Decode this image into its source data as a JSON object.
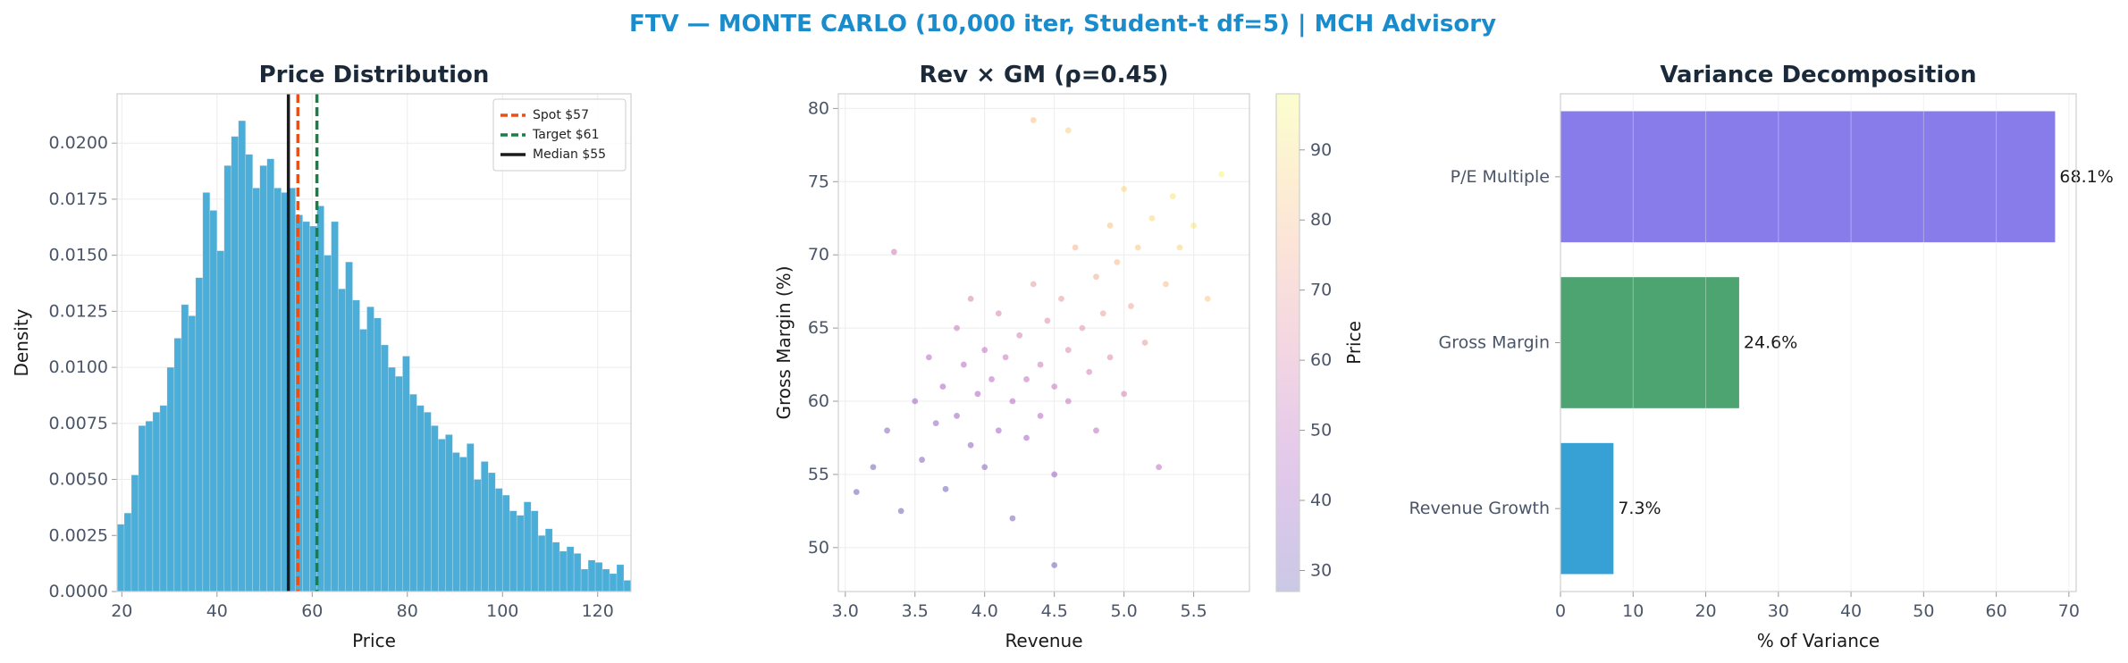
{
  "title": "FTV — MONTE CARLO (10,000 iter, Student-t df=5) | MCH Advisory",
  "chart_data": [
    {
      "type": "histogram",
      "title": "Price Distribution",
      "xlabel": "Price",
      "ylabel": "Density",
      "color": "#4aaed9",
      "grid": true,
      "legend": "upper right",
      "bins": [
        19,
        20.5,
        22,
        23.5,
        25,
        26.5,
        28,
        29.5,
        31,
        32.5,
        34,
        35.5,
        37,
        38.5,
        40,
        41.5,
        43,
        44.5,
        46,
        47.5,
        49,
        50.5,
        52,
        53.5,
        55,
        56.5,
        58,
        59.5,
        61,
        62.5,
        64,
        65.5,
        67,
        68.5,
        70,
        71.5,
        73,
        74.5,
        76,
        77.5,
        79,
        80.5,
        82,
        83.5,
        85,
        86.5,
        88,
        89.5,
        91,
        92.5,
        94,
        95.5,
        97,
        98.5,
        100,
        101.5,
        103,
        104.5,
        106,
        107.5,
        109,
        110.5,
        112,
        113.5,
        115,
        116.5,
        118,
        119.5,
        121,
        122.5,
        124,
        125.5,
        127
      ],
      "values": [
        0.003,
        0.0035,
        0.0052,
        0.0074,
        0.0076,
        0.008,
        0.0083,
        0.01,
        0.0113,
        0.0128,
        0.0123,
        0.014,
        0.0178,
        0.017,
        0.0152,
        0.019,
        0.0203,
        0.021,
        0.0195,
        0.018,
        0.019,
        0.0193,
        0.018,
        0.0178,
        0.018,
        0.0168,
        0.0165,
        0.0163,
        0.0172,
        0.015,
        0.0165,
        0.0135,
        0.0147,
        0.013,
        0.0117,
        0.0127,
        0.0122,
        0.011,
        0.01,
        0.0096,
        0.0105,
        0.0088,
        0.0083,
        0.008,
        0.0074,
        0.0068,
        0.007,
        0.0062,
        0.006,
        0.0066,
        0.005,
        0.0058,
        0.0053,
        0.0046,
        0.0043,
        0.0036,
        0.0034,
        0.004,
        0.0036,
        0.0025,
        0.0028,
        0.0022,
        0.0018,
        0.002,
        0.0017,
        0.001,
        0.0014,
        0.0013,
        0.001,
        0.0008,
        0.0012,
        0.0005
      ],
      "vlines": [
        {
          "name": "Spot $57",
          "x": 57,
          "color": "#e8501a",
          "dashed": true
        },
        {
          "name": "Target $61",
          "x": 61,
          "color": "#1a7f45",
          "dashed": true
        },
        {
          "name": "Median $55",
          "x": 55,
          "color": "#1b1b1b",
          "dashed": false
        }
      ],
      "xlim": [
        19,
        127
      ],
      "xticks": [
        20,
        40,
        60,
        80,
        100,
        120
      ],
      "ylim": [
        0,
        0.0222
      ],
      "yticks": [
        {
          "value": 0,
          "label": "0.0000"
        },
        {
          "value": 0.0025,
          "label": "0.0025"
        },
        {
          "value": 0.005,
          "label": "0.0050"
        },
        {
          "value": 0.0075,
          "label": "0.0075"
        },
        {
          "value": 0.01,
          "label": "0.0100"
        },
        {
          "value": 0.0125,
          "label": "0.0125"
        },
        {
          "value": 0.015,
          "label": "0.0150"
        },
        {
          "value": 0.0175,
          "label": "0.0175"
        },
        {
          "value": 0.02,
          "label": "0.0200"
        }
      ]
    },
    {
      "type": "scatter",
      "title": "Rev × GM (ρ=0.45)",
      "xlabel": "Revenue",
      "ylabel": "Gross Margin (%)",
      "grid": true,
      "colormap": "plasma",
      "colorbar_label": "Price",
      "x": [
        3.08,
        3.2,
        3.3,
        3.35,
        3.4,
        3.5,
        3.55,
        3.6,
        3.65,
        3.7,
        3.72,
        3.8,
        3.8,
        3.85,
        3.9,
        3.9,
        3.95,
        4.0,
        4.0,
        4.05,
        4.1,
        4.1,
        4.15,
        4.2,
        4.2,
        4.25,
        4.3,
        4.3,
        4.35,
        4.4,
        4.4,
        4.45,
        4.5,
        4.5,
        4.55,
        4.6,
        4.6,
        4.65,
        4.7,
        4.5,
        4.75,
        4.8,
        4.8,
        4.85,
        4.9,
        4.9,
        4.95,
        5.0,
        5.0,
        5.05,
        5.1,
        5.15,
        5.2,
        5.25,
        5.3,
        5.35,
        5.4,
        5.5,
        5.6,
        5.7,
        4.6,
        4.35
      ],
      "values": [
        53.8,
        55.5,
        58.0,
        70.2,
        52.5,
        60.0,
        56.0,
        63.0,
        58.5,
        61.0,
        54.0,
        65.0,
        59.0,
        62.5,
        57.0,
        67.0,
        60.5,
        63.5,
        55.5,
        61.5,
        58.0,
        66.0,
        63.0,
        60.0,
        52.0,
        64.5,
        61.5,
        57.5,
        68.0,
        62.5,
        59.0,
        65.5,
        61.0,
        55.0,
        67.0,
        63.5,
        60.0,
        70.5,
        65.0,
        48.8,
        62.0,
        68.5,
        58.0,
        66.0,
        72.0,
        63.0,
        69.5,
        60.5,
        74.5,
        66.5,
        70.5,
        64.0,
        72.5,
        55.5,
        68.0,
        74.0,
        70.5,
        72.0,
        67.0,
        75.5,
        78.5,
        79.2
      ],
      "color_values": [
        28,
        30,
        35,
        55,
        28,
        42,
        33,
        48,
        38,
        44,
        30,
        54,
        40,
        48,
        37,
        60,
        45,
        52,
        36,
        49,
        42,
        60,
        54,
        48,
        32,
        58,
        52,
        43,
        68,
        56,
        48,
        63,
        54,
        40,
        68,
        61,
        52,
        77,
        66,
        30,
        58,
        74,
        50,
        70,
        82,
        62,
        79,
        58,
        88,
        73,
        83,
        68,
        88,
        51,
        80,
        92,
        87,
        92,
        84,
        97,
        86,
        82
      ],
      "xlim": [
        2.95,
        5.9
      ],
      "xticks": [
        {
          "value": 3,
          "label": "3.0"
        },
        3.5,
        {
          "value": 4,
          "label": "4.0"
        },
        4.5,
        {
          "value": 5,
          "label": "5.0"
        },
        5.5
      ],
      "ylim": [
        47,
        81
      ],
      "yticks": [
        50,
        55,
        60,
        65,
        70,
        75,
        80
      ],
      "clim": [
        27,
        98
      ],
      "cticks": [
        30,
        40,
        50,
        60,
        70,
        80,
        90
      ]
    },
    {
      "type": "barh",
      "title": "Variance Decomposition",
      "xlabel": "% of Variance",
      "grid": true,
      "categories": [
        "P/E Multiple",
        "Gross Margin",
        "Revenue Growth"
      ],
      "values": [
        68.1,
        24.6,
        7.3
      ],
      "value_labels": [
        "68.1%",
        "24.6%",
        "7.3%"
      ],
      "colors": [
        "#7b6ee8",
        "#3a9a62",
        "#2196d0"
      ],
      "xlim": [
        0,
        71
      ],
      "xticks": [
        0,
        10,
        20,
        30,
        40,
        50,
        60,
        70
      ]
    }
  ]
}
